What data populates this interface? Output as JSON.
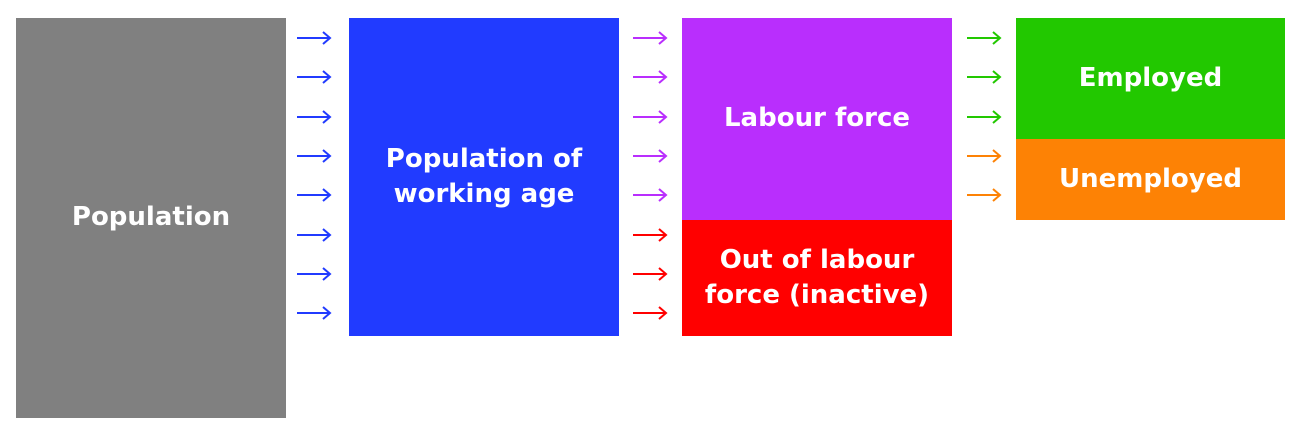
{
  "boxes": {
    "population": {
      "label": "Population",
      "color": "#808080"
    },
    "working_age": {
      "label": "Population of\nworking age",
      "color": "#213bff"
    },
    "labour_force": {
      "label": "Labour force",
      "color": "#b92efd"
    },
    "out_of_labour_force": {
      "label": "Out of labour\nforce (inactive)",
      "color": "#ff0000"
    },
    "employed": {
      "label": "Employed",
      "color": "#22c800"
    },
    "unemployed": {
      "label": "Unemployed",
      "color": "#fd8205"
    }
  },
  "arrow_groups": [
    {
      "name": "population-to-working-age",
      "colors": [
        "#213bff",
        "#213bff",
        "#213bff",
        "#213bff",
        "#213bff",
        "#213bff",
        "#213bff",
        "#213bff"
      ]
    },
    {
      "name": "working-age-to-status",
      "colors": [
        "#b92efd",
        "#b92efd",
        "#b92efd",
        "#b92efd",
        "#b92efd",
        "#ff0000",
        "#ff0000",
        "#ff0000"
      ]
    },
    {
      "name": "labour-force-to-employment",
      "colors": [
        "#22c800",
        "#22c800",
        "#22c800",
        "#fd8205",
        "#fd8205"
      ]
    }
  ]
}
